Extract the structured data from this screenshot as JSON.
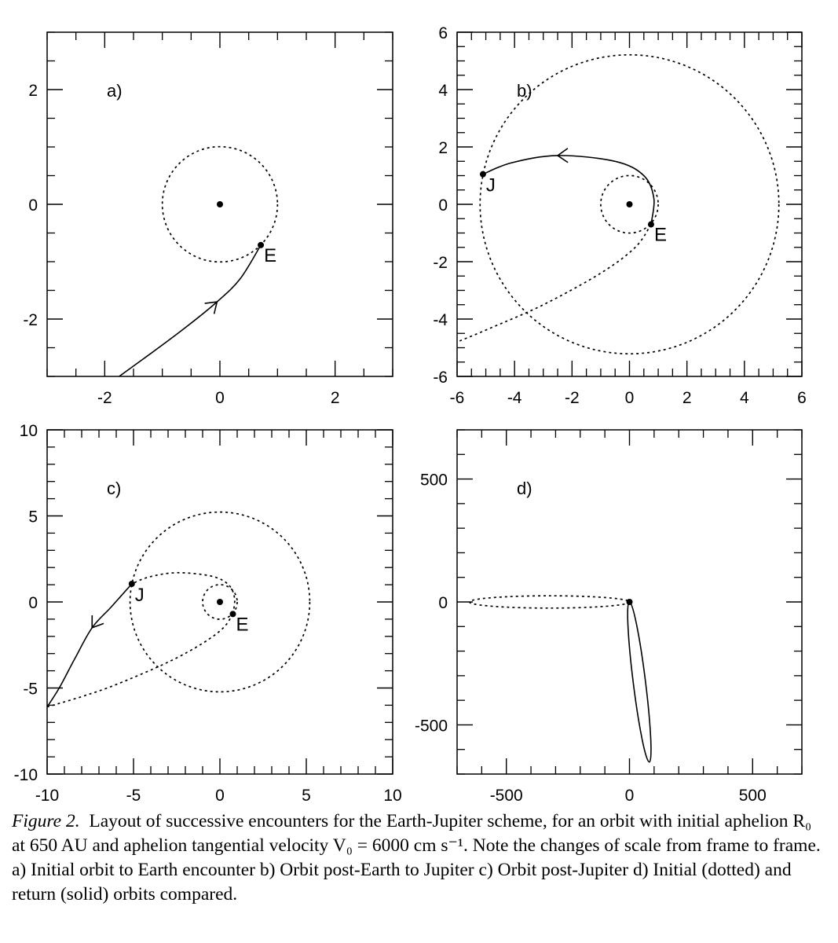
{
  "caption": {
    "label": "Figure 2.",
    "text": "Layout of successive encounters for the Earth-Jupiter scheme, for an orbit with initial aphelion R₀ at 650 AU and aphelion tangential velocity V₀ = 6000 cm s⁻¹. Note the changes of scale from frame to frame. a) Initial orbit to Earth encounter b) Orbit post-Earth to Jupiter c) Orbit post-Jupiter d) Initial (dotted) and return (solid) orbits compared."
  },
  "chart_data": [
    {
      "type": "line",
      "panel": "a)",
      "xlim": [
        -3,
        3
      ],
      "ylim": [
        -3,
        3
      ],
      "xticks": [
        -2,
        0,
        2
      ],
      "yticks": [
        -2,
        0,
        2
      ],
      "grid": false,
      "points": [
        {
          "label": "",
          "x": 0,
          "y": 0
        },
        {
          "label": "E",
          "x": 0.71,
          "y": -0.71
        }
      ],
      "series": [
        {
          "style": "dotted",
          "shape": "circle",
          "center": [
            0,
            0
          ],
          "radius": 1.0
        },
        {
          "style": "solid",
          "path": [
            [
              -1.75,
              -3.0
            ],
            [
              -1.2,
              -2.6
            ],
            [
              -0.6,
              -2.15
            ],
            [
              -0.05,
              -1.7
            ],
            [
              0.35,
              -1.3
            ],
            [
              0.71,
              -0.71
            ]
          ],
          "arrow_at": 3
        }
      ]
    },
    {
      "type": "line",
      "panel": "b)",
      "xlim": [
        -6,
        6
      ],
      "ylim": [
        -6,
        6
      ],
      "xticks": [
        -6,
        -4,
        -2,
        0,
        2,
        4,
        6
      ],
      "yticks": [
        -6,
        -4,
        -2,
        0,
        2,
        4,
        6
      ],
      "grid": false,
      "points": [
        {
          "label": "",
          "x": 0,
          "y": 0
        },
        {
          "label": "J",
          "x": -5.1,
          "y": 1.05
        },
        {
          "label": "E",
          "x": 0.75,
          "y": -0.7
        }
      ],
      "series": [
        {
          "style": "dotted",
          "shape": "circle",
          "center": [
            0,
            0
          ],
          "radius": 1.0
        },
        {
          "style": "dotted",
          "shape": "circle",
          "center": [
            0,
            0
          ],
          "radius": 5.2
        },
        {
          "style": "solid",
          "path": [
            [
              0.75,
              -0.7
            ],
            [
              0.85,
              0.2
            ],
            [
              0.5,
              1.0
            ],
            [
              -0.5,
              1.5
            ],
            [
              -2.5,
              1.7
            ],
            [
              -4.1,
              1.45
            ],
            [
              -5.1,
              1.05
            ]
          ],
          "arrow_at": 4
        },
        {
          "style": "dotted",
          "path": [
            [
              0.75,
              -0.7
            ],
            [
              0.2,
              -1.5
            ],
            [
              -1.0,
              -2.4
            ],
            [
              -3.0,
              -3.5
            ],
            [
              -4.8,
              -4.3
            ],
            [
              -6.0,
              -4.8
            ]
          ]
        }
      ]
    },
    {
      "type": "line",
      "panel": "c)",
      "xlim": [
        -10,
        10
      ],
      "ylim": [
        -10,
        10
      ],
      "xticks": [
        -10,
        -5,
        0,
        5,
        10
      ],
      "yticks": [
        -10,
        -5,
        0,
        5,
        10
      ],
      "grid": false,
      "points": [
        {
          "label": "",
          "x": 0,
          "y": 0
        },
        {
          "label": "J",
          "x": -5.1,
          "y": 1.05
        },
        {
          "label": "E",
          "x": 0.75,
          "y": -0.7
        }
      ],
      "series": [
        {
          "style": "dotted",
          "shape": "circle",
          "center": [
            0,
            0
          ],
          "radius": 1.0
        },
        {
          "style": "dotted",
          "shape": "circle",
          "center": [
            0,
            0
          ],
          "radius": 5.2
        },
        {
          "style": "dotted",
          "path": [
            [
              0.75,
              -0.7
            ],
            [
              0.85,
              0.2
            ],
            [
              0.5,
              1.0
            ],
            [
              -0.5,
              1.5
            ],
            [
              -2.5,
              1.7
            ],
            [
              -4.1,
              1.45
            ],
            [
              -5.1,
              1.05
            ]
          ]
        },
        {
          "style": "dotted",
          "path": [
            [
              0.75,
              -0.7
            ],
            [
              0.2,
              -1.5
            ],
            [
              -1.0,
              -2.4
            ],
            [
              -3.0,
              -3.5
            ],
            [
              -6.0,
              -4.8
            ],
            [
              -8.0,
              -5.5
            ],
            [
              -10.0,
              -6.1
            ]
          ]
        },
        {
          "style": "solid",
          "path": [
            [
              -5.1,
              1.05
            ],
            [
              -6.3,
              -0.3
            ],
            [
              -7.4,
              -1.5
            ],
            [
              -8.4,
              -3.3
            ],
            [
              -9.3,
              -5.0
            ],
            [
              -10.0,
              -6.1
            ]
          ],
          "arrow_at": 2
        }
      ]
    },
    {
      "type": "line",
      "panel": "d)",
      "xlim": [
        -700,
        700
      ],
      "ylim": [
        -700,
        700
      ],
      "xticks": [
        -500,
        0,
        500
      ],
      "yticks": [
        -500,
        0,
        500
      ],
      "grid": false,
      "points": [
        {
          "label": "",
          "x": 0,
          "y": 0
        }
      ],
      "series": [
        {
          "style": "dotted",
          "shape": "ellipse",
          "center": [
            -325,
            0
          ],
          "rx": 325,
          "ry": 25,
          "rotation_deg": 0
        },
        {
          "style": "solid",
          "shape": "ellipse",
          "center": [
            40,
            -325
          ],
          "rx": 328,
          "ry": 25,
          "rotation_deg": -82.9
        }
      ]
    }
  ]
}
